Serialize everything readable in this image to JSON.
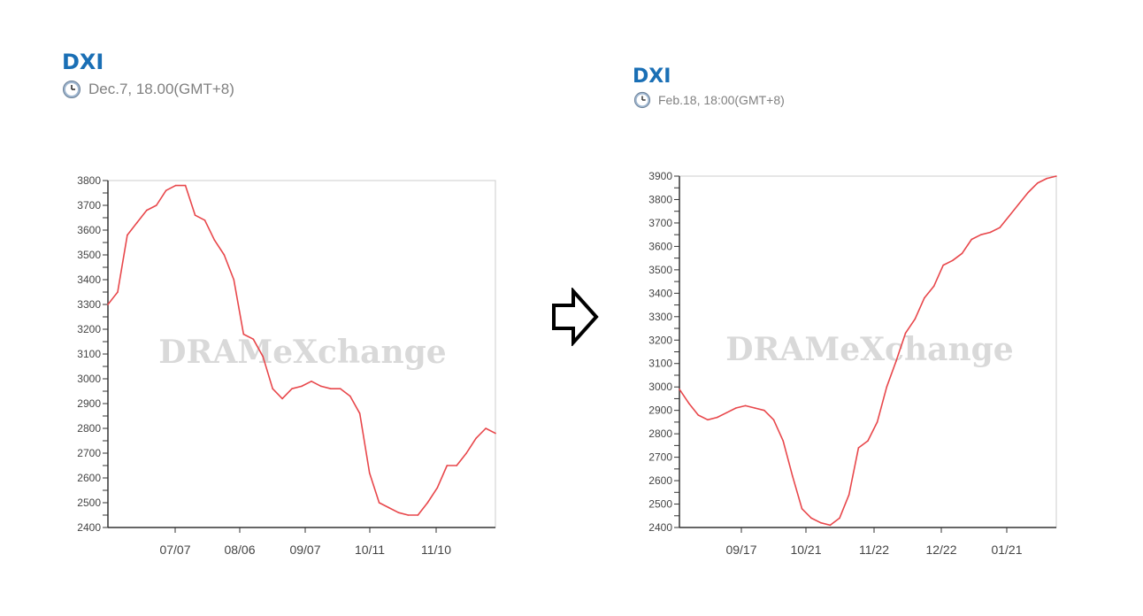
{
  "colors": {
    "title": "#1a6fb5",
    "line": "#e8474b",
    "watermark": "#d9d9d9"
  },
  "icons": {
    "timestamp": "clock-icon",
    "transition": "right-arrow-icon"
  },
  "watermark": "DRAMeXchange",
  "panels": [
    {
      "title": "DXI",
      "timestamp": "Dec.7, 18.00(GMT+8)"
    },
    {
      "title": "DXI",
      "timestamp": "Feb.18, 18:00(GMT+8)"
    }
  ],
  "chart_data": [
    {
      "type": "line",
      "title": "DXI",
      "x_ticks": [
        "07/07",
        "08/06",
        "09/07",
        "10/11",
        "11/10"
      ],
      "ylim": [
        2400,
        3800
      ],
      "grid": false,
      "series": [
        {
          "x": [
            0,
            4,
            8,
            12,
            16,
            20,
            24,
            28,
            32,
            36,
            40,
            44,
            48,
            52,
            56,
            60,
            64,
            68,
            72,
            76,
            80,
            84,
            88,
            92,
            96,
            100,
            104,
            108,
            112,
            116,
            120,
            124,
            128,
            132,
            136,
            140,
            144,
            148,
            152,
            156,
            160
          ],
          "values": [
            3300,
            3350,
            3580,
            3630,
            3680,
            3700,
            3760,
            3780,
            3780,
            3660,
            3640,
            3560,
            3500,
            3400,
            3180,
            3160,
            3090,
            2960,
            2920,
            2960,
            2970,
            2990,
            2970,
            2960,
            2960,
            2930,
            2860,
            2620,
            2500,
            2480,
            2460,
            2450,
            2450,
            2500,
            2560,
            2650,
            2650,
            2700,
            2760,
            2800,
            2780
          ]
        }
      ]
    },
    {
      "type": "line",
      "title": "DXI",
      "x_ticks": [
        "09/17",
        "10/21",
        "11/22",
        "12/22",
        "01/21"
      ],
      "ylim": [
        2400,
        3900
      ],
      "grid": false,
      "series": [
        {
          "x": [
            0,
            4,
            8,
            12,
            16,
            20,
            24,
            28,
            32,
            36,
            40,
            44,
            48,
            52,
            56,
            60,
            64,
            68,
            72,
            76,
            80,
            84,
            88,
            92,
            96,
            100,
            104,
            108,
            112,
            116,
            120,
            124,
            128,
            132,
            136,
            140,
            144,
            148,
            152,
            156,
            160
          ],
          "values": [
            2990,
            2930,
            2880,
            2860,
            2870,
            2890,
            2910,
            2920,
            2910,
            2900,
            2860,
            2770,
            2620,
            2480,
            2440,
            2420,
            2410,
            2440,
            2540,
            2740,
            2770,
            2850,
            3000,
            3110,
            3230,
            3290,
            3380,
            3430,
            3520,
            3540,
            3570,
            3630,
            3650,
            3660,
            3680,
            3730,
            3780,
            3830,
            3870,
            3890,
            3900
          ]
        }
      ]
    }
  ]
}
